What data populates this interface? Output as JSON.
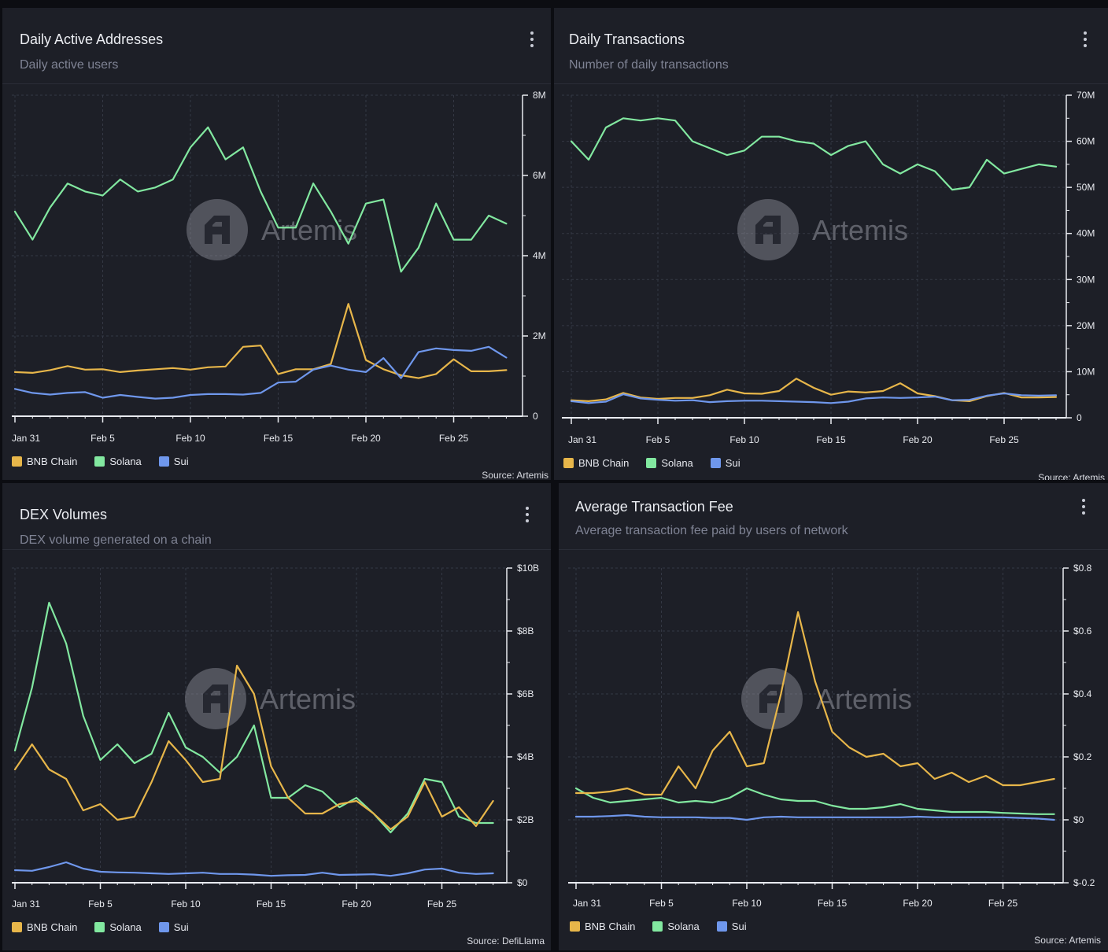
{
  "colors": {
    "bnb": "#e7b64a",
    "solana": "#82e8a0",
    "sui": "#6f97ec",
    "grid": "#343844",
    "axis": "#e9ebf0"
  },
  "watermark": "Artemis",
  "legend": [
    "BNB Chain",
    "Solana",
    "Sui"
  ],
  "panels": [
    {
      "title": "Daily Active Addresses",
      "subtitle": "Daily active users",
      "source": "Source: Artemis",
      "chart_data": {
        "type": "line",
        "x_days": 29,
        "xticks": [
          {
            "i": 0,
            "label": "Jan 31"
          },
          {
            "i": 5,
            "label": "Feb 5"
          },
          {
            "i": 10,
            "label": "Feb 10"
          },
          {
            "i": 15,
            "label": "Feb 15"
          },
          {
            "i": 20,
            "label": "Feb 20"
          },
          {
            "i": 25,
            "label": "Feb 25"
          }
        ],
        "yticks": [
          {
            "v": 0,
            "label": "0"
          },
          {
            "v": 2,
            "label": "2M"
          },
          {
            "v": 4,
            "label": "4M"
          },
          {
            "v": 6,
            "label": "6M"
          },
          {
            "v": 8,
            "label": "8M"
          }
        ],
        "ylim": [
          0,
          8
        ],
        "unit": "M",
        "series": [
          {
            "name": "Solana",
            "key": "solana",
            "values": [
              5.1,
              4.4,
              5.2,
              5.8,
              5.6,
              5.5,
              5.9,
              5.6,
              5.7,
              5.9,
              6.7,
              7.2,
              6.4,
              6.7,
              5.6,
              4.7,
              4.7,
              5.8,
              5.1,
              4.3,
              5.3,
              5.4,
              3.6,
              4.2,
              5.3,
              4.4,
              4.4,
              5.0,
              4.8
            ]
          },
          {
            "name": "BNB Chain",
            "key": "bnb",
            "values": [
              1.1,
              1.08,
              1.15,
              1.25,
              1.16,
              1.17,
              1.1,
              1.14,
              1.17,
              1.2,
              1.16,
              1.22,
              1.24,
              1.73,
              1.76,
              1.05,
              1.17,
              1.17,
              1.3,
              2.8,
              1.4,
              1.17,
              1.02,
              0.95,
              1.05,
              1.42,
              1.12,
              1.12,
              1.15
            ]
          },
          {
            "name": "Sui",
            "key": "sui",
            "values": [
              0.68,
              0.58,
              0.54,
              0.58,
              0.6,
              0.46,
              0.53,
              0.48,
              0.44,
              0.46,
              0.53,
              0.55,
              0.55,
              0.54,
              0.58,
              0.84,
              0.86,
              1.16,
              1.26,
              1.16,
              1.1,
              1.45,
              0.95,
              1.6,
              1.69,
              1.65,
              1.63,
              1.73,
              1.46
            ]
          }
        ]
      }
    },
    {
      "title": "Daily Transactions",
      "subtitle": "Number of daily transactions",
      "source": "Source: Artemis",
      "chart_data": {
        "type": "line",
        "x_days": 29,
        "xticks": [
          {
            "i": 0,
            "label": "Jan 31"
          },
          {
            "i": 5,
            "label": "Feb 5"
          },
          {
            "i": 10,
            "label": "Feb 10"
          },
          {
            "i": 15,
            "label": "Feb 15"
          },
          {
            "i": 20,
            "label": "Feb 20"
          },
          {
            "i": 25,
            "label": "Feb 25"
          }
        ],
        "yticks": [
          {
            "v": 0,
            "label": "0"
          },
          {
            "v": 10,
            "label": "10M"
          },
          {
            "v": 20,
            "label": "20M"
          },
          {
            "v": 30,
            "label": "30M"
          },
          {
            "v": 40,
            "label": "40M"
          },
          {
            "v": 50,
            "label": "50M"
          },
          {
            "v": 60,
            "label": "60M"
          },
          {
            "v": 70,
            "label": "70M"
          }
        ],
        "ylim": [
          0,
          70
        ],
        "unit": "M",
        "series": [
          {
            "name": "Solana",
            "key": "solana",
            "values": [
              60,
              56,
              63,
              65,
              64.5,
              65,
              64.5,
              60,
              58.5,
              57,
              58,
              61,
              61,
              60,
              59.5,
              57,
              59,
              60,
              55,
              53,
              55,
              53.5,
              49.5,
              50,
              56,
              53,
              54,
              55,
              54.5
            ]
          },
          {
            "name": "BNB Chain",
            "key": "bnb",
            "values": [
              3.8,
              3.6,
              4,
              5.4,
              4.4,
              4.1,
              4.3,
              4.3,
              4.9,
              6.1,
              5.3,
              5.2,
              5.8,
              8.5,
              6.5,
              5,
              5.7,
              5.5,
              5.8,
              7.5,
              5.3,
              4.7,
              3.8,
              3.6,
              4.7,
              5.4,
              4.4,
              4.4,
              4.5
            ]
          },
          {
            "name": "Sui",
            "key": "sui",
            "values": [
              3.6,
              3.2,
              3.5,
              5.1,
              4.2,
              3.9,
              3.7,
              3.8,
              3.4,
              3.6,
              3.7,
              3.7,
              3.6,
              3.5,
              3.4,
              3.2,
              3.5,
              4.2,
              4.4,
              4.3,
              4.4,
              4.6,
              3.8,
              3.9,
              4.8,
              5.3,
              4.9,
              4.8,
              4.9
            ]
          }
        ]
      }
    },
    {
      "title": "DEX Volumes",
      "subtitle": "DEX volume generated on a chain",
      "source": "Source: DefiLlama",
      "chart_data": {
        "type": "line",
        "x_days": 29,
        "xticks": [
          {
            "i": 0,
            "label": "Jan 31"
          },
          {
            "i": 5,
            "label": "Feb 5"
          },
          {
            "i": 10,
            "label": "Feb 10"
          },
          {
            "i": 15,
            "label": "Feb 15"
          },
          {
            "i": 20,
            "label": "Feb 20"
          },
          {
            "i": 25,
            "label": "Feb 25"
          }
        ],
        "yticks": [
          {
            "v": 0,
            "label": "$0"
          },
          {
            "v": 2,
            "label": "$2B"
          },
          {
            "v": 4,
            "label": "$4B"
          },
          {
            "v": 6,
            "label": "$6B"
          },
          {
            "v": 8,
            "label": "$8B"
          },
          {
            "v": 10,
            "label": "$10B"
          }
        ],
        "ylim": [
          0,
          10
        ],
        "unit": "$B",
        "series": [
          {
            "name": "Solana",
            "key": "solana",
            "values": [
              4.2,
              6.2,
              8.9,
              7.6,
              5.3,
              3.9,
              4.4,
              3.8,
              4.1,
              5.4,
              4.3,
              4,
              3.5,
              4,
              5,
              2.7,
              2.7,
              3.1,
              2.9,
              2.4,
              2.7,
              2.2,
              1.6,
              2.2,
              3.3,
              3.2,
              2.1,
              1.9,
              1.9
            ]
          },
          {
            "name": "BNB Chain",
            "key": "bnb",
            "values": [
              3.6,
              4.4,
              3.6,
              3.3,
              2.3,
              2.5,
              2,
              2.1,
              3.2,
              4.5,
              3.9,
              3.2,
              3.3,
              6.9,
              6,
              3.7,
              2.7,
              2.2,
              2.2,
              2.5,
              2.6,
              2.2,
              1.7,
              2.1,
              3.2,
              2.1,
              2.4,
              1.8,
              2.6
            ]
          },
          {
            "name": "Sui",
            "key": "sui",
            "values": [
              0.4,
              0.38,
              0.5,
              0.65,
              0.45,
              0.35,
              0.33,
              0.32,
              0.3,
              0.28,
              0.3,
              0.32,
              0.28,
              0.28,
              0.26,
              0.22,
              0.24,
              0.25,
              0.32,
              0.25,
              0.26,
              0.27,
              0.22,
              0.3,
              0.42,
              0.45,
              0.32,
              0.28,
              0.3
            ]
          }
        ]
      }
    },
    {
      "title": "Average Transaction Fee",
      "subtitle": "Average transaction fee paid by users of network",
      "source": "Source: Artemis",
      "chart_data": {
        "type": "line",
        "x_days": 29,
        "xticks": [
          {
            "i": 0,
            "label": "Jan 31"
          },
          {
            "i": 5,
            "label": "Feb 5"
          },
          {
            "i": 10,
            "label": "Feb 10"
          },
          {
            "i": 15,
            "label": "Feb 15"
          },
          {
            "i": 20,
            "label": "Feb 20"
          },
          {
            "i": 25,
            "label": "Feb 25"
          }
        ],
        "yticks": [
          {
            "v": -0.2,
            "label": "$-0.2"
          },
          {
            "v": 0,
            "label": "$0"
          },
          {
            "v": 0.2,
            "label": "$0.2"
          },
          {
            "v": 0.4,
            "label": "$0.4"
          },
          {
            "v": 0.6,
            "label": "$0.6"
          },
          {
            "v": 0.8,
            "label": "$0.8"
          }
        ],
        "ylim": [
          -0.2,
          0.8
        ],
        "unit": "$",
        "series": [
          {
            "name": "Solana",
            "key": "solana",
            "values": [
              0.1,
              0.07,
              0.055,
              0.06,
              0.065,
              0.07,
              0.055,
              0.06,
              0.055,
              0.07,
              0.1,
              0.08,
              0.065,
              0.06,
              0.06,
              0.045,
              0.035,
              0.035,
              0.04,
              0.05,
              0.035,
              0.03,
              0.025,
              0.025,
              0.025,
              0.022,
              0.02,
              0.018,
              0.018
            ]
          },
          {
            "name": "BNB Chain",
            "key": "bnb",
            "values": [
              0.085,
              0.085,
              0.09,
              0.1,
              0.08,
              0.08,
              0.17,
              0.1,
              0.22,
              0.28,
              0.17,
              0.18,
              0.4,
              0.66,
              0.44,
              0.28,
              0.23,
              0.2,
              0.21,
              0.17,
              0.18,
              0.13,
              0.15,
              0.12,
              0.14,
              0.11,
              0.11,
              0.12,
              0.13
            ]
          },
          {
            "name": "Sui",
            "key": "sui",
            "values": [
              0.01,
              0.01,
              0.012,
              0.015,
              0.01,
              0.008,
              0.008,
              0.008,
              0.006,
              0.006,
              0.0,
              0.008,
              0.01,
              0.008,
              0.008,
              0.008,
              0.008,
              0.008,
              0.008,
              0.008,
              0.01,
              0.008,
              0.008,
              0.008,
              0.008,
              0.008,
              0.006,
              0.004,
              0.0
            ]
          }
        ]
      }
    }
  ]
}
